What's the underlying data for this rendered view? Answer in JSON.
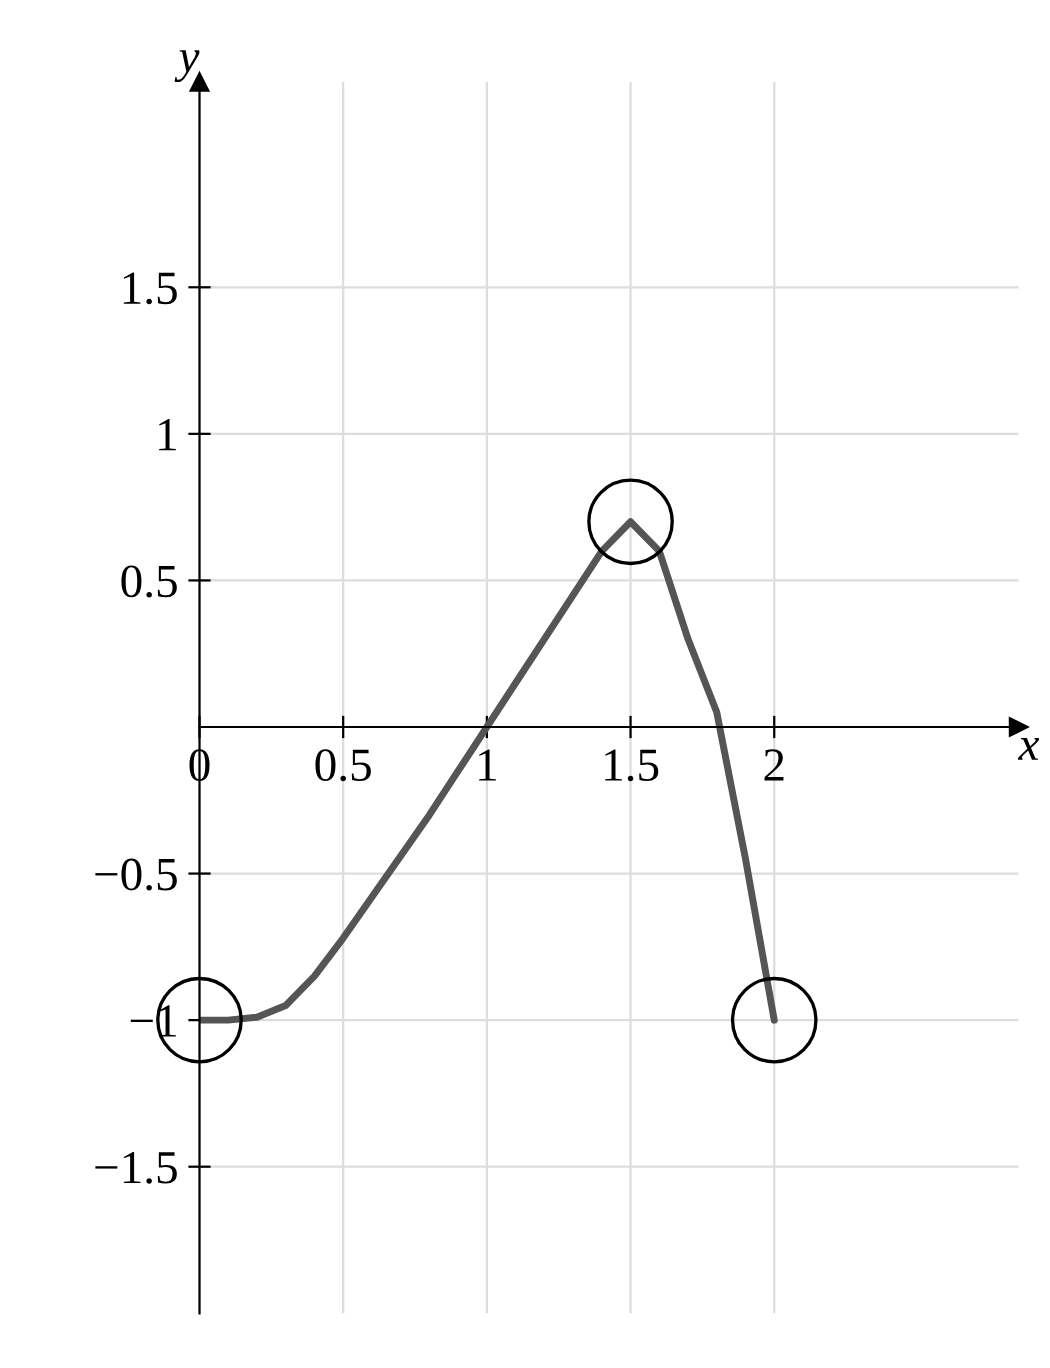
{
  "chart_data": {
    "type": "line",
    "xlabel": "x",
    "ylabel": "y",
    "xlim": [
      0,
      2.85
    ],
    "ylim": [
      -2,
      2.2
    ],
    "xticks": [
      {
        "value": 0,
        "label": "0"
      },
      0.5,
      1,
      1.5,
      2
    ],
    "yticks": [
      {
        "value": -1.5,
        "label": "−1.5"
      },
      {
        "value": -1,
        "label": "−1"
      },
      {
        "value": -0.5,
        "label": "−0.5"
      },
      0.5,
      1,
      1.5
    ],
    "grid": true,
    "legend": false,
    "series": [
      {
        "color": "#555555",
        "x": [
          0,
          0.1,
          0.2,
          0.3,
          0.4,
          0.5,
          0.6,
          0.7,
          0.8,
          0.9,
          1.0,
          1.1,
          1.2,
          1.3,
          1.4,
          1.5,
          1.6,
          1.7,
          1.8,
          1.9,
          2.0
        ],
        "values": [
          -1,
          -1,
          -0.99,
          -0.95,
          -0.85,
          -0.72,
          -0.58,
          -0.44,
          -0.3,
          -0.15,
          0,
          0.15,
          0.3,
          0.45,
          0.6,
          0.7,
          0.6,
          0.3,
          0.05,
          -0.45,
          -1
        ]
      },
      {
        "type": "scatter",
        "color": "#000000",
        "marker": "circle",
        "x": [
          0,
          1.5,
          2
        ],
        "values": [
          -1,
          0.7,
          -1
        ]
      }
    ]
  }
}
